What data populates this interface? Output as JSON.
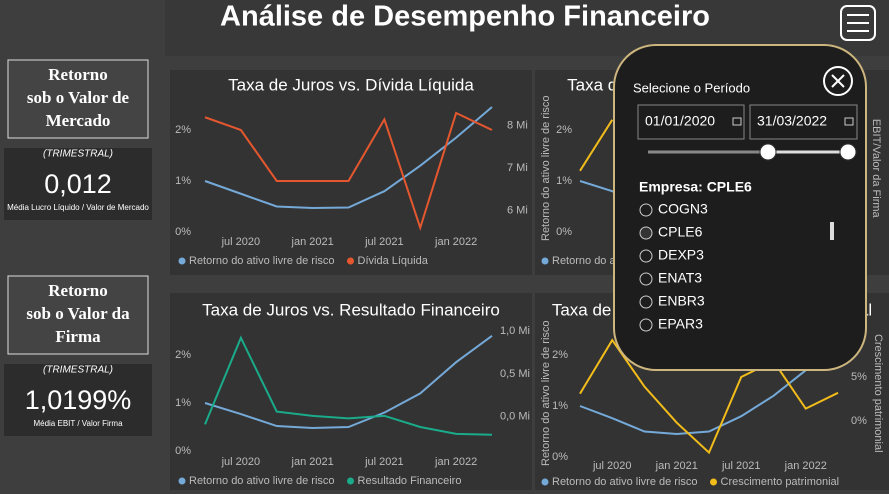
{
  "header": {
    "title": "Análise de Desempenho Financeiro"
  },
  "cards": [
    {
      "title": [
        "Retorno",
        "sob o Valor de",
        "Mercado"
      ],
      "period": "(TRIMESTRAL)",
      "value": "0,012",
      "caption": "Média Lucro Líquido / Valor de Mercado"
    },
    {
      "title": [
        "Retorno",
        "sob o Valor da",
        "Firma"
      ],
      "period": "(TRIMESTRAL)",
      "value": "1,0199%",
      "caption": "Média EBIT / Valor Firma"
    }
  ],
  "chart_data": [
    {
      "type": "line",
      "title": "Taxa de Juros vs. Dívida Líquida",
      "x": [
        "2020-04",
        "2020-07",
        "2020-10",
        "2021-01",
        "2021-04",
        "2021-07",
        "2021-10",
        "2022-01",
        "2022-04"
      ],
      "xlim": [
        "2020-04",
        "2022-04"
      ],
      "xticks": [
        {
          "value": "2020-07",
          "label": "jul 2020"
        },
        {
          "value": "2021-01",
          "label": "jan 2021"
        },
        {
          "value": "2021-07",
          "label": "jul 2021"
        },
        {
          "value": "2022-01",
          "label": "jan 2022"
        }
      ],
      "ylim": [
        0,
        2.5
      ],
      "yticks": [
        {
          "value": 0,
          "label": "0%"
        },
        {
          "value": 1,
          "label": "1%"
        },
        {
          "value": 2,
          "label": "2%"
        }
      ],
      "y2lim": [
        5.5,
        8.5
      ],
      "y2ticks": [
        {
          "value": 6,
          "label": "6 Mi"
        },
        {
          "value": 7,
          "label": "7 Mi"
        },
        {
          "value": 8,
          "label": "8 Mi"
        }
      ],
      "series": [
        {
          "name": "Retorno do ativo livre de risco",
          "color": "#74a9d8",
          "values": [
            1.0,
            0.75,
            0.5,
            0.47,
            0.48,
            0.8,
            1.3,
            1.85,
            2.45
          ]
        },
        {
          "name": "Dívida Líquida",
          "color": "#e5572e",
          "axis": "y2",
          "values": [
            8.2,
            7.9,
            6.7,
            6.7,
            6.7,
            8.15,
            5.6,
            8.3,
            7.9
          ]
        }
      ]
    },
    {
      "type": "line",
      "title": "Taxa de Juros vs. EBIT/Valor da Firma",
      "ylabel": "Retorno do ativo livre de risco",
      "y2label": "EBIT/Valor da Firma",
      "x": [
        "2020-04",
        "2020-07",
        "2020-10",
        "2021-01",
        "2021-04",
        "2021-07",
        "2021-10",
        "2022-01",
        "2022-04"
      ],
      "xlim": [
        "2020-04",
        "2022-04"
      ],
      "ylim": [
        0,
        2.5
      ],
      "yticks": [
        {
          "value": 0,
          "label": "0%"
        },
        {
          "value": 1,
          "label": "1%"
        },
        {
          "value": 2,
          "label": "2%"
        }
      ],
      "series": [
        {
          "name": "Retorno do ativo livre de risco",
          "color": "#74a9d8",
          "values": [
            1.0,
            0.8,
            0.5,
            0.47,
            0.48,
            0.8,
            1.3,
            1.85,
            2.45
          ]
        },
        {
          "name": "EBIT/Valor da Firma",
          "color": "#f2bc1b",
          "values": [
            1.2,
            2.2,
            null,
            null,
            null,
            null,
            null,
            null,
            null
          ]
        }
      ]
    },
    {
      "type": "line",
      "title": "Taxa de Juros vs. Resultado Financeiro",
      "x": [
        "2020-04",
        "2020-07",
        "2020-10",
        "2021-01",
        "2021-04",
        "2021-07",
        "2021-10",
        "2022-01",
        "2022-04"
      ],
      "xlim": [
        "2020-04",
        "2022-04"
      ],
      "xticks": [
        {
          "value": "2020-07",
          "label": "jul 2020"
        },
        {
          "value": "2021-01",
          "label": "jan 2021"
        },
        {
          "value": "2021-07",
          "label": "jul 2021"
        },
        {
          "value": "2022-01",
          "label": "jan 2022"
        }
      ],
      "ylim": [
        0,
        2.5
      ],
      "yticks": [
        {
          "value": 0,
          "label": "0%"
        },
        {
          "value": 1,
          "label": "1%"
        },
        {
          "value": 2,
          "label": "2%"
        }
      ],
      "y2lim": [
        -0.4,
        1.0
      ],
      "y2ticks": [
        {
          "value": 0,
          "label": "0,0 Mi"
        },
        {
          "value": 0.5,
          "label": "0,5 Mi"
        },
        {
          "value": 1,
          "label": "1,0 Mi"
        }
      ],
      "series": [
        {
          "name": "Retorno do ativo livre de risco",
          "color": "#74a9d8",
          "values": [
            1.0,
            0.77,
            0.52,
            0.48,
            0.5,
            0.8,
            1.2,
            1.85,
            2.4
          ]
        },
        {
          "name": "Resultado Financeiro",
          "color": "#1aab8a",
          "axis": "y2",
          "values": [
            -0.09,
            0.92,
            0.06,
            0.01,
            -0.02,
            0.01,
            -0.12,
            -0.2,
            -0.21
          ]
        }
      ]
    },
    {
      "type": "line",
      "title": "Taxa de Juros vs. Crescimento patrimonial",
      "ylabel": "Retorno do ativo livre de risco",
      "y2label": "Crescimento patrimonial",
      "x": [
        "2020-04",
        "2020-07",
        "2020-10",
        "2021-01",
        "2021-04",
        "2021-07",
        "2021-10",
        "2022-01",
        "2022-04"
      ],
      "xlim": [
        "2020-04",
        "2022-04"
      ],
      "xticks": [
        {
          "value": "2020-07",
          "label": "jul 2020"
        },
        {
          "value": "2021-01",
          "label": "jan 2021"
        },
        {
          "value": "2021-07",
          "label": "jul 2021"
        },
        {
          "value": "2022-01",
          "label": "jan 2022"
        }
      ],
      "ylim": [
        0,
        2.5
      ],
      "yticks": [
        {
          "value": 0,
          "label": "0%"
        },
        {
          "value": 1,
          "label": "1%"
        },
        {
          "value": 2,
          "label": "2%"
        }
      ],
      "y2lim": [
        -4.1,
        10.4
      ],
      "y2ticks": [
        {
          "value": 0,
          "label": "0%"
        },
        {
          "value": 5,
          "label": "5%"
        }
      ],
      "series": [
        {
          "name": "Retorno do ativo livre de risco",
          "color": "#74a9d8",
          "values": [
            1.0,
            0.76,
            0.5,
            0.45,
            0.5,
            0.8,
            1.2,
            1.7,
            2.4
          ]
        },
        {
          "name": "Crescimento patrimonial",
          "color": "#f2bc1b",
          "axis": "y2",
          "values": [
            3.1,
            9.2,
            3.9,
            -0.2,
            -3.6,
            5.0,
            6.8,
            1.4,
            3.2
          ]
        }
      ]
    }
  ],
  "filter": {
    "period_label": "Selecione o Período",
    "start": "01/01/2020",
    "end": "31/03/2022",
    "company_label": "Empresa: CPLE6",
    "companies": [
      "COGN3",
      "CPLE6",
      "DEXP3",
      "ENAT3",
      "ENBR3",
      "EPAR3"
    ]
  }
}
